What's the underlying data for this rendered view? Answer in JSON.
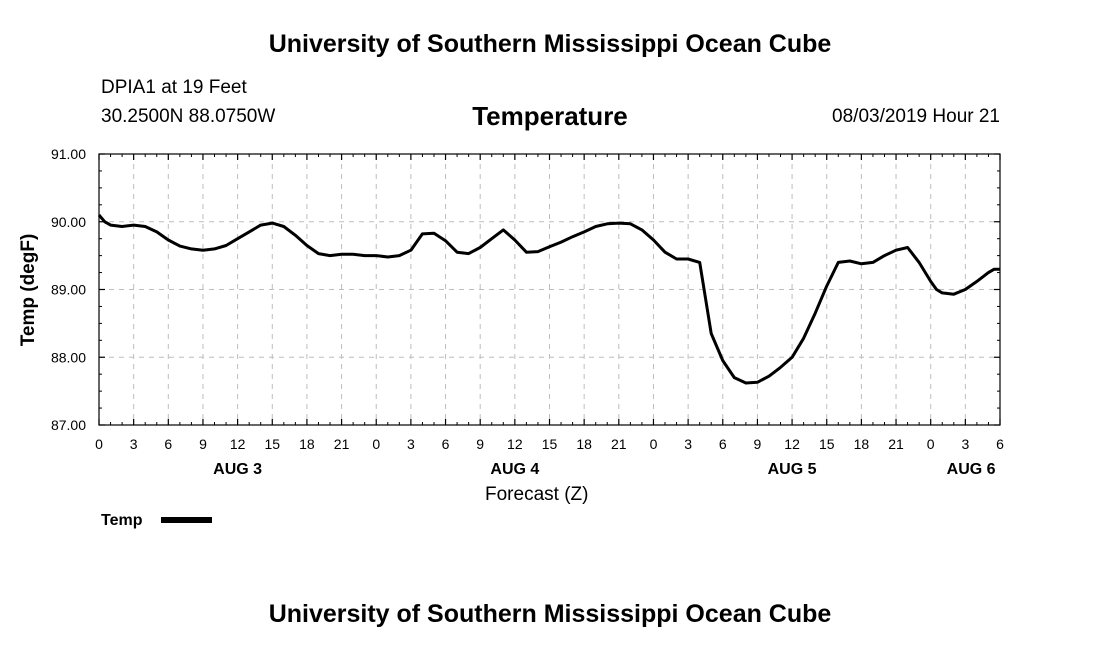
{
  "page_title": "University of Southern Mississippi Ocean Cube",
  "footer_title": "University of Southern Mississippi Ocean Cube",
  "station": "DPIA1 at 19 Feet",
  "coordinates": "30.2500N 88.0750W",
  "timestamp": "08/03/2019 Hour 21",
  "chart_data": {
    "type": "line",
    "title": "Temperature",
    "xlabel": "Forecast (Z)",
    "ylabel": "Temp (degF)",
    "ylim": [
      87,
      91
    ],
    "xlim": [
      0,
      78
    ],
    "y_ticks": [
      87,
      88,
      89,
      90,
      91
    ],
    "y_tick_labels": [
      "87.00",
      "88.00",
      "89.00",
      "90.00",
      "91.00"
    ],
    "x_ticks": [
      0,
      3,
      6,
      9,
      12,
      15,
      18,
      21,
      24,
      27,
      30,
      33,
      36,
      39,
      42,
      45,
      48,
      51,
      54,
      57,
      60,
      63,
      66,
      69,
      72,
      75,
      78
    ],
    "x_tick_labels": [
      "0",
      "3",
      "6",
      "9",
      "12",
      "15",
      "18",
      "21",
      "0",
      "3",
      "6",
      "9",
      "12",
      "15",
      "18",
      "21",
      "0",
      "3",
      "6",
      "9",
      "12",
      "15",
      "18",
      "21",
      "0",
      "3",
      "6"
    ],
    "date_labels": [
      {
        "label": "AUG 3",
        "x": 12
      },
      {
        "label": "AUG 4",
        "x": 36
      },
      {
        "label": "AUG 5",
        "x": 60
      },
      {
        "label": "AUG 6",
        "x": 75.5
      }
    ],
    "grid": true,
    "legend": [
      {
        "name": "Temp",
        "position": "bottom-left"
      }
    ],
    "series": [
      {
        "name": "Temp",
        "x": [
          0,
          0.5,
          1,
          2,
          3,
          4,
          5,
          6,
          7,
          8,
          9,
          10,
          11,
          12,
          13,
          14,
          15,
          16,
          17,
          18,
          19,
          20,
          21,
          22,
          23,
          24,
          25,
          26,
          27,
          28,
          29,
          30,
          31,
          32,
          33,
          34,
          35,
          36,
          37,
          38,
          39,
          40,
          41,
          42,
          43,
          44,
          45,
          46,
          47,
          48,
          49,
          50,
          51,
          52,
          53,
          54,
          55,
          56,
          57,
          58,
          59,
          60,
          61,
          62,
          63,
          64,
          65,
          66,
          67,
          68,
          69,
          70,
          71,
          72,
          72.5,
          73,
          74,
          75,
          76,
          77,
          77.5,
          78
        ],
        "values": [
          90.1,
          90.0,
          89.95,
          89.93,
          89.95,
          89.93,
          89.85,
          89.73,
          89.64,
          89.6,
          89.58,
          89.6,
          89.65,
          89.75,
          89.85,
          89.95,
          89.98,
          89.93,
          89.8,
          89.65,
          89.53,
          89.5,
          89.52,
          89.52,
          89.5,
          89.5,
          89.48,
          89.5,
          89.58,
          89.82,
          89.83,
          89.72,
          89.55,
          89.53,
          89.62,
          89.75,
          89.88,
          89.73,
          89.55,
          89.56,
          89.63,
          89.7,
          89.78,
          89.85,
          89.93,
          89.97,
          89.98,
          89.97,
          89.88,
          89.73,
          89.55,
          89.45,
          89.45,
          89.4,
          88.35,
          87.95,
          87.7,
          87.62,
          87.63,
          87.72,
          87.85,
          88.0,
          88.28,
          88.65,
          89.05,
          89.4,
          89.42,
          89.38,
          89.4,
          89.5,
          89.58,
          89.62,
          89.4,
          89.12,
          89.0,
          88.95,
          88.93,
          89.0,
          89.12,
          89.25,
          89.3,
          89.3
        ]
      }
    ]
  }
}
